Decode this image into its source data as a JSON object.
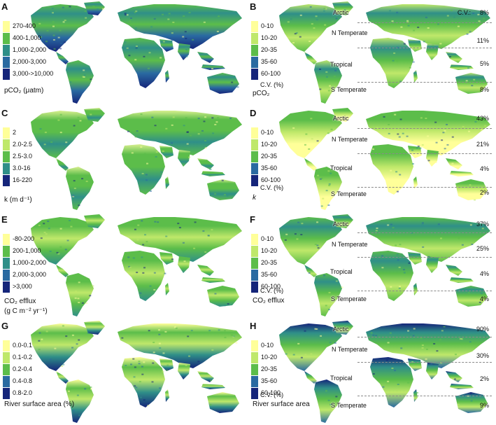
{
  "colors": {
    "c1": "#ffff99",
    "c2": "#bfe86a",
    "c3": "#5cbd4a",
    "c4": "#2f8f88",
    "c5": "#2a6aa1",
    "c6": "#15257a",
    "land_pale": "#d8ef8f",
    "dash": "#8a8a8a"
  },
  "panels": [
    {
      "letter": "A",
      "legend": [
        "270-400",
        "400-1,000",
        "1,000-2,000",
        "2,000-3,000",
        "3,000->10,000"
      ],
      "variable": "pCO₂ (μatm)",
      "variable_unit": "",
      "scheme": "pco2"
    },
    {
      "letter": "B",
      "legend": [
        "0-10",
        "10-20",
        "20-35",
        "35-60",
        "60-100"
      ],
      "cv_legend": "",
      "variable": "pCO₂",
      "cv_head": "C.V.:",
      "zones": [
        "Arctic",
        "N Temperate",
        "Tropical",
        "S Temperate"
      ],
      "cv_values": [
        "8%",
        "11%",
        "5%",
        "8%"
      ],
      "legend_cv": "C.V. (%)",
      "scheme": "cvB"
    },
    {
      "letter": "C",
      "legend": [
        "2",
        "2.0-2.5",
        "2.5-3.0",
        "3.0-16",
        "16-220"
      ],
      "variable": "k (m d⁻¹)",
      "scheme": "k"
    },
    {
      "letter": "D",
      "legend": [
        "0-10",
        "10-20",
        "20-35",
        "35-60",
        "60-100"
      ],
      "variable": "k",
      "zones": [
        "Arctic",
        "N Temperate",
        "Tropical",
        "S Temperate"
      ],
      "cv_values": [
        "43%",
        "21%",
        "4%",
        "2%"
      ],
      "legend_cv": "C.V. (%)",
      "scheme": "cvD"
    },
    {
      "letter": "E",
      "legend": [
        "-80-200",
        "200-1,000",
        "1,000-2,000",
        "2,000-3,000",
        ">3,000"
      ],
      "variable": "CO₂ efflux",
      "variable_unit": "(g C m⁻² yr⁻¹)",
      "scheme": "efflux"
    },
    {
      "letter": "F",
      "legend": [
        "0-10",
        "10-20",
        "20-35",
        "35-60",
        "60-100"
      ],
      "variable": "CO₂ efflux",
      "zones": [
        "Arctic",
        "N Temperate",
        "Tropical",
        "S Temperate"
      ],
      "cv_values": [
        "37%",
        "25%",
        "4%",
        "4%"
      ],
      "legend_cv": "C.V. (%)",
      "scheme": "cvF"
    },
    {
      "letter": "G",
      "legend": [
        "0.0-0.1",
        "0.1-0.2",
        "0.2-0.4",
        "0.4-0.8",
        "0.8-2.0"
      ],
      "variable": "River surface area (%)",
      "scheme": "area"
    },
    {
      "letter": "H",
      "legend": [
        "0-10",
        "10-20",
        "20-35",
        "35-60",
        "60-100"
      ],
      "variable": "River surface area",
      "zones": [
        "Arctic",
        "N Temperate",
        "Tropical",
        "S Temperate"
      ],
      "cv_values": [
        "90%",
        "30%",
        "2%",
        "9%"
      ],
      "legend_cv": "C.V. (%)",
      "scheme": "cvH"
    }
  ]
}
